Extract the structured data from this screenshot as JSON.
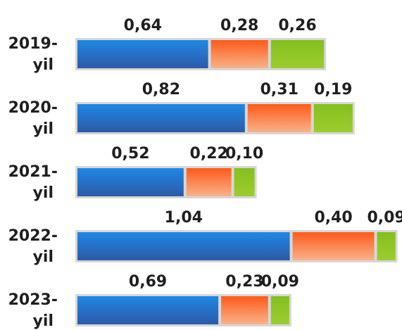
{
  "chart_data": {
    "type": "bar",
    "orientation": "horizontal",
    "stacked": true,
    "title": "",
    "xlabel": "",
    "ylabel": "",
    "categories": [
      "2019-\nyil",
      "2020-\nyil",
      "2021-\nyil",
      "2022-\nyil",
      "2023-\nyil"
    ],
    "series": [
      {
        "values": [
          0.64,
          0.82,
          0.52,
          1.04,
          0.69
        ],
        "labels": [
          "0,64",
          "0,82",
          "0,52",
          "1,04",
          "0,69"
        ],
        "color_top": "#1e88e5",
        "color_bottom": "#2d5aa8"
      },
      {
        "values": [
          0.28,
          0.31,
          0.22,
          0.4,
          0.23
        ],
        "labels": [
          "0,28",
          "0,31",
          "0,22",
          "0,40",
          "0,23"
        ],
        "color_top": "#ff5a1a",
        "color_bottom": "#f7b38a"
      },
      {
        "values": [
          0.26,
          0.19,
          0.1,
          0.09,
          0.09
        ],
        "labels": [
          "0,26",
          "0,19",
          "0,10",
          "0,09",
          "0,09"
        ],
        "color_top": "#84c01f",
        "color_bottom": "#9ccc2e"
      }
    ],
    "xlim": [
      0,
      1.53
    ],
    "grid": false,
    "legend": "none"
  }
}
